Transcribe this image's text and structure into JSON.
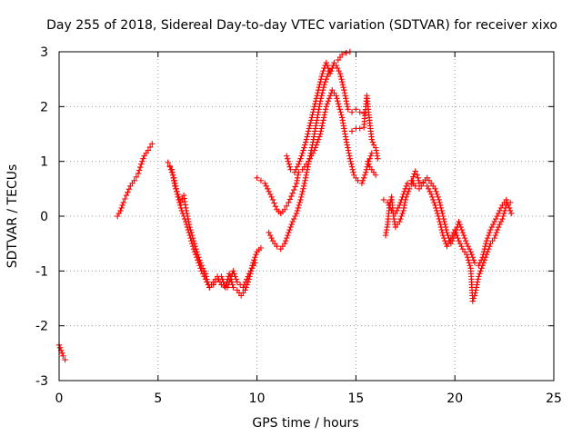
{
  "chart_data": {
    "type": "scatter",
    "title": "Day 255 of 2018, Sidereal Day-to-day VTEC variation (SDTVAR) for receiver xixo",
    "xlabel": "GPS time / hours",
    "ylabel": "SDTVAR / TECUs",
    "xlim": [
      0,
      25
    ],
    "ylim": [
      -3,
      3
    ],
    "xticks": [
      0,
      5,
      10,
      15,
      20,
      25
    ],
    "yticks": [
      -3,
      -2,
      -1,
      0,
      1,
      2,
      3
    ],
    "xtick_labels": [
      "0",
      "5",
      "10",
      "15",
      "20",
      "25"
    ],
    "ytick_labels": [
      "-3",
      "-2",
      "-1",
      "0",
      "1",
      "2",
      "3"
    ],
    "grid": true,
    "marker": "plus",
    "series_color": "#ff0000",
    "series": [
      {
        "name": "SDTVAR",
        "segments": [
          [
            [
              0.0,
              -2.35
            ],
            [
              0.1,
              -2.45
            ],
            [
              0.2,
              -2.55
            ],
            [
              0.3,
              -2.62
            ]
          ],
          [
            [
              2.95,
              0.0
            ],
            [
              3.1,
              0.1
            ],
            [
              3.25,
              0.25
            ],
            [
              3.4,
              0.38
            ],
            [
              3.6,
              0.55
            ],
            [
              3.8,
              0.65
            ],
            [
              4.0,
              0.78
            ],
            [
              4.15,
              0.95
            ],
            [
              4.3,
              1.1
            ],
            [
              4.5,
              1.2
            ],
            [
              4.7,
              1.32
            ]
          ],
          [
            [
              5.5,
              0.98
            ],
            [
              5.7,
              0.85
            ],
            [
              5.85,
              0.55
            ],
            [
              6.0,
              0.4
            ],
            [
              6.15,
              0.25
            ],
            [
              6.3,
              0.38
            ],
            [
              6.4,
              0.15
            ],
            [
              6.6,
              -0.2
            ],
            [
              6.8,
              -0.45
            ],
            [
              7.0,
              -0.7
            ],
            [
              7.2,
              -0.9
            ],
            [
              7.4,
              -1.05
            ],
            [
              7.5,
              -1.2
            ],
            [
              7.6,
              -1.3
            ],
            [
              7.8,
              -1.25
            ],
            [
              8.0,
              -1.15
            ],
            [
              8.2,
              -1.1
            ],
            [
              8.4,
              -1.3
            ],
            [
              8.6,
              -1.05
            ],
            [
              8.8,
              -1.3
            ],
            [
              9.0,
              -1.35
            ],
            [
              9.2,
              -1.45
            ],
            [
              9.4,
              -1.35
            ],
            [
              9.6,
              -1.15
            ],
            [
              9.8,
              -0.85
            ],
            [
              10.0,
              -0.65
            ],
            [
              10.2,
              -0.58
            ]
          ],
          [
            [
              5.6,
              0.9
            ],
            [
              5.8,
              0.7
            ],
            [
              6.0,
              0.35
            ],
            [
              6.2,
              0.1
            ],
            [
              6.4,
              -0.1
            ],
            [
              6.6,
              -0.35
            ],
            [
              6.8,
              -0.6
            ],
            [
              7.0,
              -0.8
            ],
            [
              7.2,
              -1.0
            ],
            [
              7.4,
              -1.15
            ],
            [
              7.6,
              -1.3
            ],
            [
              7.8,
              -1.2
            ],
            [
              8.0,
              -1.1
            ],
            [
              8.2,
              -1.25
            ],
            [
              8.5,
              -1.3
            ],
            [
              8.8,
              -1.0
            ],
            [
              9.0,
              -1.2
            ],
            [
              9.3,
              -1.3
            ],
            [
              9.6,
              -1.05
            ],
            [
              9.9,
              -0.85
            ]
          ],
          [
            [
              10.0,
              0.7
            ],
            [
              10.2,
              0.65
            ],
            [
              10.4,
              0.6
            ],
            [
              10.6,
              0.45
            ],
            [
              10.8,
              0.3
            ],
            [
              11.0,
              0.12
            ],
            [
              11.2,
              0.05
            ],
            [
              11.4,
              0.12
            ],
            [
              11.6,
              0.25
            ],
            [
              11.8,
              0.42
            ],
            [
              12.0,
              0.6
            ],
            [
              12.1,
              0.8
            ]
          ],
          [
            [
              10.6,
              -0.3
            ],
            [
              10.8,
              -0.45
            ],
            [
              11.0,
              -0.55
            ],
            [
              11.2,
              -0.6
            ],
            [
              11.4,
              -0.5
            ],
            [
              11.6,
              -0.3
            ],
            [
              11.8,
              -0.1
            ],
            [
              12.0,
              0.05
            ],
            [
              12.2,
              0.3
            ],
            [
              12.4,
              0.6
            ],
            [
              12.6,
              0.95
            ],
            [
              12.8,
              1.3
            ],
            [
              13.0,
              1.7
            ],
            [
              13.2,
              2.1
            ],
            [
              13.4,
              2.4
            ],
            [
              13.6,
              2.6
            ],
            [
              13.8,
              2.7
            ],
            [
              14.0,
              2.75
            ],
            [
              14.2,
              2.6
            ],
            [
              14.4,
              2.3
            ],
            [
              14.6,
              1.95
            ],
            [
              14.8,
              1.9
            ],
            [
              15.0,
              1.95
            ],
            [
              15.2,
              1.9
            ],
            [
              15.4,
              1.88
            ]
          ],
          [
            [
              11.5,
              1.1
            ],
            [
              11.7,
              0.85
            ],
            [
              11.9,
              0.8
            ],
            [
              12.1,
              0.95
            ],
            [
              12.3,
              1.15
            ],
            [
              12.5,
              1.4
            ],
            [
              12.7,
              1.7
            ],
            [
              12.9,
              2.0
            ],
            [
              13.1,
              2.3
            ],
            [
              13.3,
              2.6
            ],
            [
              13.5,
              2.8
            ],
            [
              13.7,
              2.6
            ],
            [
              13.9,
              2.8
            ],
            [
              14.1,
              2.85
            ],
            [
              14.3,
              2.95
            ],
            [
              14.5,
              2.98
            ],
            [
              14.7,
              3.0
            ]
          ],
          [
            [
              12.3,
              0.85
            ],
            [
              12.6,
              1.0
            ],
            [
              12.9,
              1.2
            ],
            [
              13.2,
              1.5
            ],
            [
              13.5,
              2.0
            ],
            [
              13.8,
              2.3
            ],
            [
              14.0,
              2.2
            ],
            [
              14.3,
              1.8
            ],
            [
              14.5,
              1.4
            ],
            [
              14.7,
              1.05
            ],
            [
              14.9,
              0.75
            ],
            [
              15.1,
              0.65
            ],
            [
              15.3,
              0.6
            ],
            [
              15.5,
              0.8
            ],
            [
              15.6,
              0.95
            ],
            [
              15.8,
              1.15
            ]
          ],
          [
            [
              14.8,
              1.55
            ],
            [
              15.0,
              1.6
            ],
            [
              15.2,
              1.6
            ],
            [
              15.4,
              1.62
            ],
            [
              15.5,
              2.0
            ],
            [
              15.55,
              2.2
            ],
            [
              15.7,
              1.7
            ],
            [
              15.8,
              1.4
            ],
            [
              15.9,
              1.3
            ],
            [
              16.0,
              1.25
            ],
            [
              16.1,
              1.05
            ]
          ],
          [
            [
              15.6,
              1.0
            ],
            [
              15.7,
              0.9
            ],
            [
              15.8,
              0.85
            ],
            [
              15.9,
              0.8
            ],
            [
              16.0,
              0.75
            ]
          ],
          [
            [
              16.5,
              -0.35
            ],
            [
              16.6,
              -0.15
            ],
            [
              16.7,
              0.2
            ],
            [
              16.8,
              0.35
            ],
            [
              16.9,
              0.0
            ],
            [
              17.0,
              -0.2
            ],
            [
              17.2,
              -0.1
            ],
            [
              17.4,
              0.1
            ],
            [
              17.5,
              0.3
            ],
            [
              17.7,
              0.5
            ],
            [
              17.8,
              0.58
            ],
            [
              17.9,
              0.72
            ],
            [
              18.0,
              0.82
            ],
            [
              18.1,
              0.75
            ],
            [
              18.2,
              0.6
            ],
            [
              18.4,
              0.62
            ],
            [
              18.6,
              0.7
            ],
            [
              18.8,
              0.6
            ],
            [
              19.0,
              0.5
            ],
            [
              19.2,
              0.3
            ],
            [
              19.4,
              0.0
            ],
            [
              19.6,
              -0.3
            ],
            [
              19.8,
              -0.5
            ],
            [
              20.0,
              -0.35
            ],
            [
              20.2,
              -0.1
            ],
            [
              20.4,
              -0.3
            ],
            [
              20.6,
              -0.5
            ],
            [
              20.8,
              -0.65
            ],
            [
              21.0,
              -0.85
            ],
            [
              21.2,
              -0.9
            ],
            [
              21.4,
              -0.75
            ],
            [
              21.6,
              -0.45
            ],
            [
              21.8,
              -0.25
            ],
            [
              22.0,
              -0.1
            ],
            [
              22.2,
              0.05
            ],
            [
              22.4,
              0.2
            ],
            [
              22.6,
              0.3
            ],
            [
              22.7,
              0.2
            ],
            [
              22.85,
              0.05
            ]
          ],
          [
            [
              16.4,
              0.3
            ],
            [
              16.6,
              0.25
            ],
            [
              16.8,
              0.1
            ],
            [
              17.0,
              0.05
            ],
            [
              17.2,
              0.2
            ],
            [
              17.4,
              0.4
            ],
            [
              17.6,
              0.6
            ],
            [
              17.8,
              0.65
            ],
            [
              18.0,
              0.55
            ],
            [
              18.2,
              0.5
            ],
            [
              18.4,
              0.6
            ],
            [
              18.6,
              0.55
            ],
            [
              18.8,
              0.4
            ],
            [
              19.0,
              0.2
            ],
            [
              19.2,
              -0.05
            ],
            [
              19.4,
              -0.35
            ],
            [
              19.6,
              -0.55
            ],
            [
              19.8,
              -0.4
            ],
            [
              20.0,
              -0.25
            ],
            [
              20.2,
              -0.45
            ],
            [
              20.4,
              -0.6
            ],
            [
              20.6,
              -0.7
            ],
            [
              20.8,
              -0.95
            ],
            [
              20.9,
              -1.55
            ],
            [
              21.0,
              -1.45
            ],
            [
              21.2,
              -1.1
            ],
            [
              21.4,
              -0.9
            ],
            [
              21.6,
              -0.7
            ],
            [
              21.8,
              -0.5
            ],
            [
              22.0,
              -0.4
            ],
            [
              22.2,
              -0.2
            ],
            [
              22.4,
              -0.05
            ],
            [
              22.6,
              0.2
            ],
            [
              22.8,
              0.25
            ]
          ]
        ]
      }
    ]
  }
}
